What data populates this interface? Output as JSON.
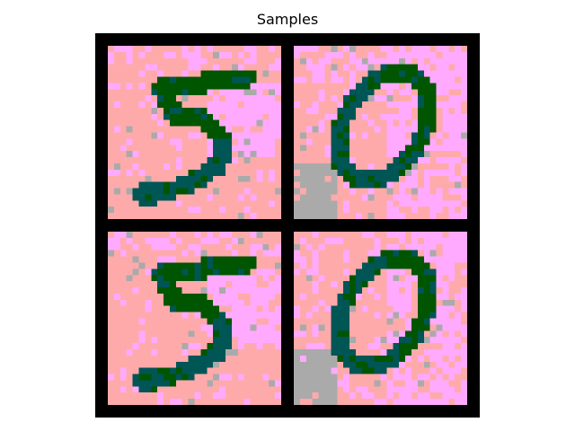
{
  "figure": {
    "title": "Samples"
  },
  "grid": {
    "rows": 2,
    "cols": 2,
    "frame_color": "#000000"
  },
  "palette": {
    "salmon": "#ffaaaa",
    "pink": "#ffaaff",
    "gray": "#aaaaaa",
    "green": "#005500",
    "teal": "#005555"
  },
  "samples": [
    {
      "digit": "5",
      "row": 0,
      "col": 0
    },
    {
      "digit": "0",
      "row": 0,
      "col": 1
    },
    {
      "digit": "5",
      "row": 1,
      "col": 0
    },
    {
      "digit": "0",
      "row": 1,
      "col": 1
    }
  ]
}
